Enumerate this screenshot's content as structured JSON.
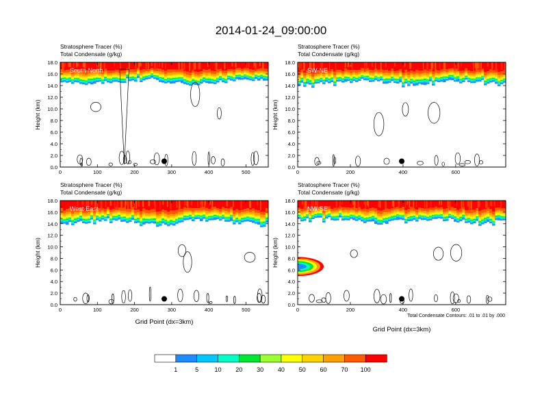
{
  "figure": {
    "title": "2014-01-24_09:00:00",
    "contour_note": "Total Condensate Contours: .01 to .01 by .000",
    "colorbar": {
      "colors": [
        "#ffffff",
        "#1e8cff",
        "#00c8ff",
        "#00ffc8",
        "#00e632",
        "#9bff32",
        "#ffff00",
        "#ffd200",
        "#ffa000",
        "#ff5a00",
        "#ff0000"
      ],
      "labels": [
        "1",
        "5",
        "10",
        "20",
        "30",
        "40",
        "50",
        "60",
        "70",
        "100"
      ]
    }
  },
  "chart_data": [
    {
      "type": "heatmap",
      "panel": "South-North",
      "title_line1": "Stratosphere Tracer   (%)",
      "title_line2": "Total Condensate   (g/kg)",
      "xlabel": "",
      "ylabel": "Height (km)",
      "xlim": [
        0,
        560
      ],
      "ylim": [
        0,
        18
      ],
      "xticks": [
        0,
        100,
        200,
        300,
        400,
        500
      ],
      "xtick_labels": [
        "0",
        "100",
        "200",
        "300",
        "400",
        "500"
      ],
      "yticks": [
        0,
        2,
        4,
        6,
        8,
        10,
        12,
        14,
        16,
        18
      ],
      "ytick_labels": [
        "0.0",
        "2.0",
        "4.0",
        "6.0",
        "8.0",
        "10.0",
        "12.0",
        "14.0",
        "16.0",
        "18.0"
      ],
      "tracer_base_km": 14.8,
      "marker": {
        "x": 280,
        "y": 1.0
      }
    },
    {
      "type": "heatmap",
      "panel": "SW-NE",
      "title_line1": "Stratosphere Tracer   (%)",
      "title_line2": "Total Condensate   (g/kg)",
      "xlabel": "",
      "ylabel": "Height (km)",
      "xlim": [
        0,
        790
      ],
      "ylim": [
        0,
        18
      ],
      "xticks": [
        0,
        200,
        400,
        600
      ],
      "xtick_labels": [
        "0",
        "200",
        "400",
        "600"
      ],
      "yticks": [
        0,
        2,
        4,
        6,
        8,
        10,
        12,
        14,
        16,
        18
      ],
      "ytick_labels": [
        "0.0",
        "2.0",
        "4.0",
        "6.0",
        "8.0",
        "10.0",
        "12.0",
        "14.0",
        "16.0",
        "18.0"
      ],
      "tracer_base_km": 14.6,
      "marker": {
        "x": 395,
        "y": 1.0
      }
    },
    {
      "type": "heatmap",
      "panel": "West-East",
      "title_line1": "Stratosphere Tracer   (%)",
      "title_line2": "Total Condensate   (g/kg)",
      "xlabel": "Grid Point (dx=3km)",
      "ylabel": "Height (km)",
      "xlim": [
        0,
        560
      ],
      "ylim": [
        0,
        18
      ],
      "xticks": [
        0,
        100,
        200,
        300,
        400,
        500
      ],
      "xtick_labels": [
        "0",
        "100",
        "200",
        "300",
        "400",
        "500"
      ],
      "yticks": [
        0,
        2,
        4,
        6,
        8,
        10,
        12,
        14,
        16,
        18
      ],
      "ytick_labels": [
        "0.0",
        "2.0",
        "4.0",
        "6.0",
        "8.0",
        "10.0",
        "12.0",
        "14.0",
        "16.0",
        "18.0"
      ],
      "tracer_base_km": 14.4,
      "marker": {
        "x": 280,
        "y": 1.0
      }
    },
    {
      "type": "heatmap",
      "panel": "NW-SE",
      "title_line1": "Stratosphere Tracer   (%)",
      "title_line2": "Total Condensate   (g/kg)",
      "xlabel": "Grid Point (dx=3km)",
      "ylabel": "Height (km)",
      "xlim": [
        0,
        790
      ],
      "ylim": [
        0,
        18
      ],
      "xticks": [
        0,
        200,
        400,
        600
      ],
      "xtick_labels": [
        "0",
        "200",
        "400",
        "600"
      ],
      "yticks": [
        0,
        2,
        4,
        6,
        8,
        10,
        12,
        14,
        16,
        18
      ],
      "ytick_labels": [
        "0.0",
        "2.0",
        "4.0",
        "6.0",
        "8.0",
        "10.0",
        "12.0",
        "14.0",
        "16.0",
        "18.0"
      ],
      "tracer_base_km": 14.6,
      "marker": {
        "x": 395,
        "y": 1.0
      }
    }
  ]
}
